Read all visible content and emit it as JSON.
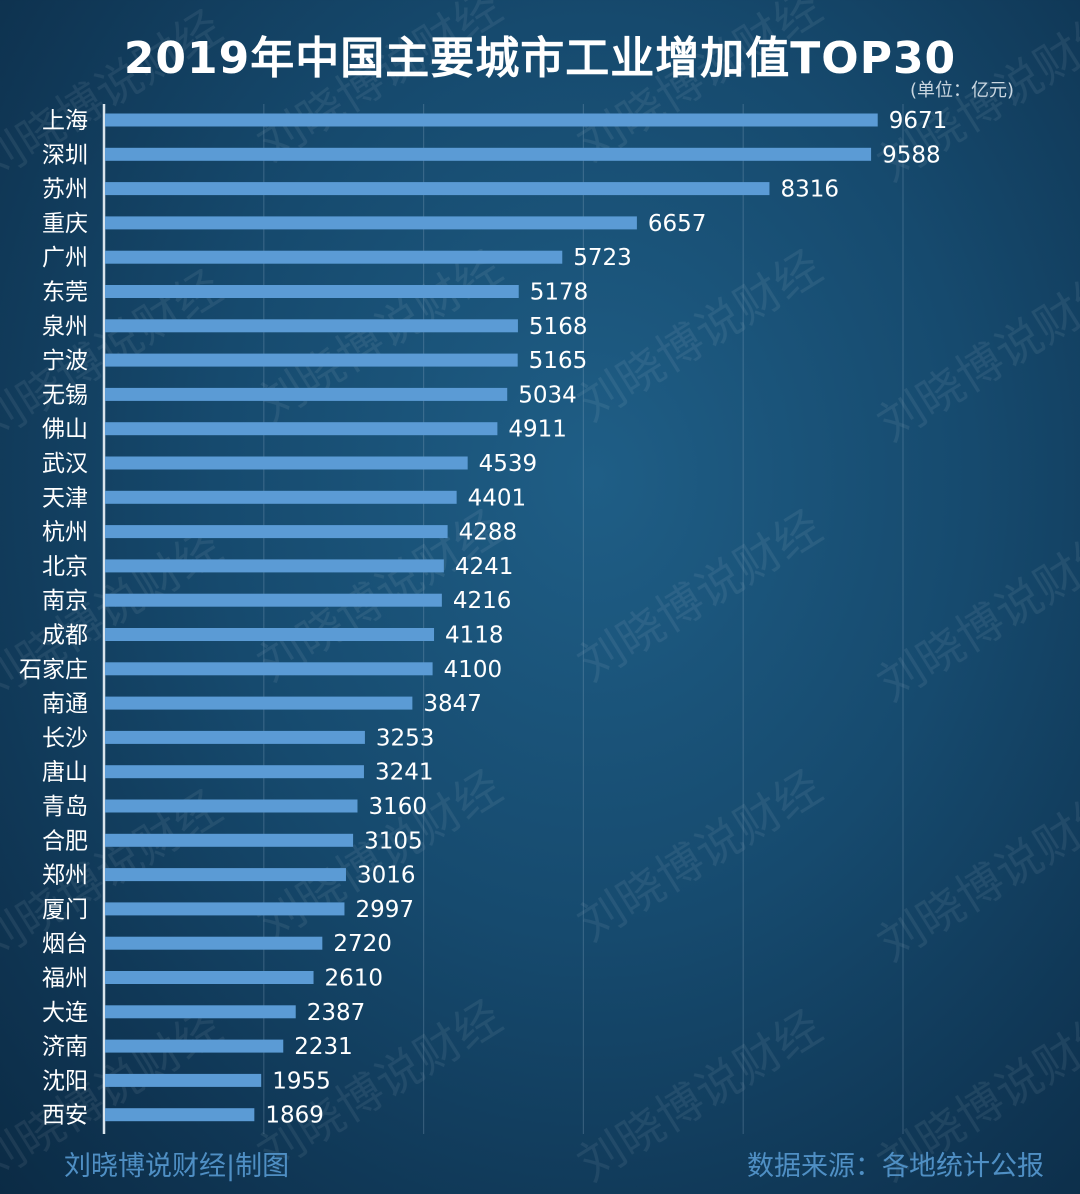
{
  "page": {
    "title": "2019年中国主要城市工业增加值TOP30",
    "unit": "(单位：亿元)",
    "credit": "刘晓博说财经|制图",
    "source": "数据来源：各地统计公报",
    "watermark": "刘晓博说财经"
  },
  "colors": {
    "bar": "#5b9bd5",
    "label": "#ffffff",
    "grid": "rgba(140,170,195,0.28)",
    "axis": "#d9e4ec",
    "footer": "#4f8fc4"
  },
  "chart_data": {
    "type": "bar",
    "orientation": "horizontal",
    "title": "2019年中国主要城市工业增加值TOP30",
    "unit": "(单位：亿元)",
    "xlim": [
      0,
      11000
    ],
    "grid": true,
    "categories": [
      "上海",
      "深圳",
      "苏州",
      "重庆",
      "广州",
      "东莞",
      "泉州",
      "宁波",
      "无锡",
      "佛山",
      "武汉",
      "天津",
      "杭州",
      "北京",
      "南京",
      "成都",
      "石家庄",
      "南通",
      "长沙",
      "唐山",
      "青岛",
      "合肥",
      "郑州",
      "厦门",
      "烟台",
      "福州",
      "大连",
      "济南",
      "沈阳",
      "西安"
    ],
    "values": [
      9671,
      9588,
      8316,
      6657,
      5723,
      5178,
      5168,
      5165,
      5034,
      4911,
      4539,
      4401,
      4288,
      4241,
      4216,
      4118,
      4100,
      3847,
      3253,
      3241,
      3160,
      3105,
      3016,
      2997,
      2720,
      2610,
      2387,
      2231,
      1955,
      1869
    ]
  }
}
